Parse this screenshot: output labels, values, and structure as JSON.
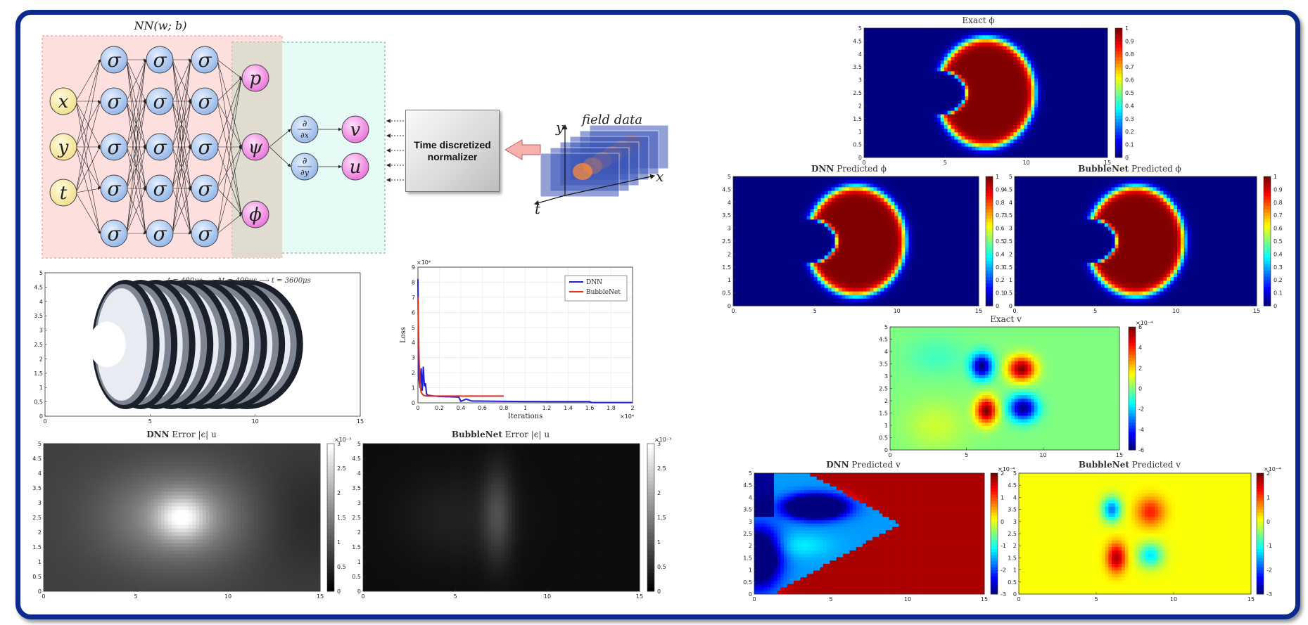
{
  "nn": {
    "title": "NN(w; b)",
    "inputs": [
      "x",
      "y",
      "t"
    ],
    "hidden_symbol": "σ",
    "outputs": [
      "p",
      "ψ",
      "ϕ"
    ],
    "derivs": [
      {
        "num": "∂",
        "den": "∂x"
      },
      {
        "num": "∂",
        "den": "∂y"
      }
    ],
    "vel": [
      "v",
      "u"
    ]
  },
  "normalizer": {
    "line1": "Time discretized",
    "line2": "normalizer"
  },
  "field": {
    "title": "field data",
    "axes": [
      "y",
      "x",
      "t"
    ]
  },
  "bubble_evolution": {
    "annotation": "t = 400μs ⟶ Δt = 400μs ⟶ t = 3600μs",
    "xticks": [
      "0",
      "5",
      "10",
      "15"
    ],
    "yticks": [
      "0",
      "0.5",
      "1",
      "1.5",
      "2",
      "2.5",
      "3",
      "3.5",
      "4",
      "4.5",
      "5"
    ]
  },
  "loss_chart": {
    "chart_data": {
      "type": "line",
      "title": "",
      "xlabel": "Iterations",
      "ylabel": "Loss",
      "x_multiplier": "×10⁴",
      "y_multiplier": "×10⁴",
      "xlim": [
        0,
        2
      ],
      "ylim": [
        0,
        9
      ],
      "xticks": [
        "0",
        "0.2",
        "0.4",
        "0.6",
        "0.8",
        "1",
        "1.2",
        "1.4",
        "1.6",
        "1.8",
        "2"
      ],
      "yticks": [
        "0",
        "1",
        "2",
        "3",
        "4",
        "5",
        "6",
        "7",
        "8",
        "9"
      ],
      "legend_position": "top-right",
      "series": [
        {
          "name": "DNN",
          "color": "#1f1fd6",
          "x": [
            0,
            0.005,
            0.01,
            0.02,
            0.03,
            0.04,
            0.05,
            0.06,
            0.07,
            0.08,
            0.09,
            0.1,
            0.15,
            0.2,
            0.3,
            0.38,
            0.4,
            0.45,
            0.5,
            0.8,
            1.0,
            1.2,
            1.4,
            1.6,
            1.62,
            1.8,
            2.0
          ],
          "y": [
            8.2,
            4.0,
            1.5,
            1.0,
            2.3,
            0.8,
            2.4,
            1.1,
            1.3,
            0.6,
            0.5,
            0.5,
            0.45,
            0.42,
            0.4,
            0.38,
            0.1,
            0.25,
            0.12,
            0.1,
            0.09,
            0.08,
            0.08,
            0.08,
            0.02,
            0.02,
            0.02
          ]
        },
        {
          "name": "BubbleNet",
          "color": "#e0321e",
          "x": [
            0,
            0.01,
            0.02,
            0.03,
            0.05,
            0.08,
            0.1,
            0.2,
            0.4,
            0.6,
            0.8
          ],
          "y": [
            7.0,
            3.0,
            1.2,
            0.7,
            0.5,
            0.45,
            0.45,
            0.45,
            0.45,
            0.45,
            0.45
          ]
        }
      ]
    }
  },
  "err_dnn": {
    "title_bold": "DNN",
    "title_rest": " Error |ϵ| u",
    "cb_mult": "×10⁻³",
    "cb_ticks": [
      "0",
      "0.5",
      "1",
      "1.5",
      "2",
      "2.5",
      "3"
    ]
  },
  "err_bub": {
    "title_bold": "BubbleNet",
    "title_rest": " Error |ϵ| u",
    "cb_mult": "×10⁻³",
    "cb_ticks": [
      "0",
      "0.5",
      "1",
      "1.5",
      "2",
      "2.5",
      "3"
    ]
  },
  "exact_phi": {
    "title_bold": "",
    "title_rest": "Exact ϕ",
    "cb_ticks": [
      "0",
      "0.1",
      "0.2",
      "0.3",
      "0.4",
      "0.5",
      "0.6",
      "0.7",
      "0.8",
      "0.9",
      "1"
    ]
  },
  "dnn_phi": {
    "title_bold": "DNN",
    "title_rest": " Predicted ϕ",
    "cb_ticks": [
      "0",
      "0.1",
      "0.2",
      "0.3",
      "0.4",
      "0.5",
      "0.6",
      "0.7",
      "0.8",
      "0.9",
      "1"
    ]
  },
  "bub_phi": {
    "title_bold": "BubbleNet",
    "title_rest": " Predicted ϕ",
    "cb_ticks": [
      "0",
      "0.1",
      "0.2",
      "0.3",
      "0.4",
      "0.5",
      "0.6",
      "0.7",
      "0.8",
      "0.9",
      "1"
    ]
  },
  "exact_v": {
    "title_bold": "",
    "title_rest": "Exact v",
    "cb_mult": "×10⁻⁴",
    "cb_ticks": [
      "-6",
      "-4",
      "-2",
      "0",
      "2",
      "4",
      "6"
    ]
  },
  "dnn_v": {
    "title_bold": "DNN",
    "title_rest": " Predicted v",
    "cb_mult": "×10⁻⁴",
    "cb_ticks": [
      "-3",
      "-2",
      "-1",
      "0",
      "1",
      "2"
    ]
  },
  "bub_v": {
    "title_bold": "BubbleNet",
    "title_rest": " Predicted v",
    "cb_mult": "×10⁻⁴",
    "cb_ticks": [
      "-3",
      "-2",
      "-1",
      "0",
      "1",
      "2"
    ]
  },
  "axes": {
    "x15": [
      "0",
      "5",
      "10",
      "15"
    ],
    "y5": [
      "0",
      "0.5",
      "1",
      "1.5",
      "2",
      "2.5",
      "3",
      "3.5",
      "4",
      "4.5",
      "5"
    ]
  }
}
